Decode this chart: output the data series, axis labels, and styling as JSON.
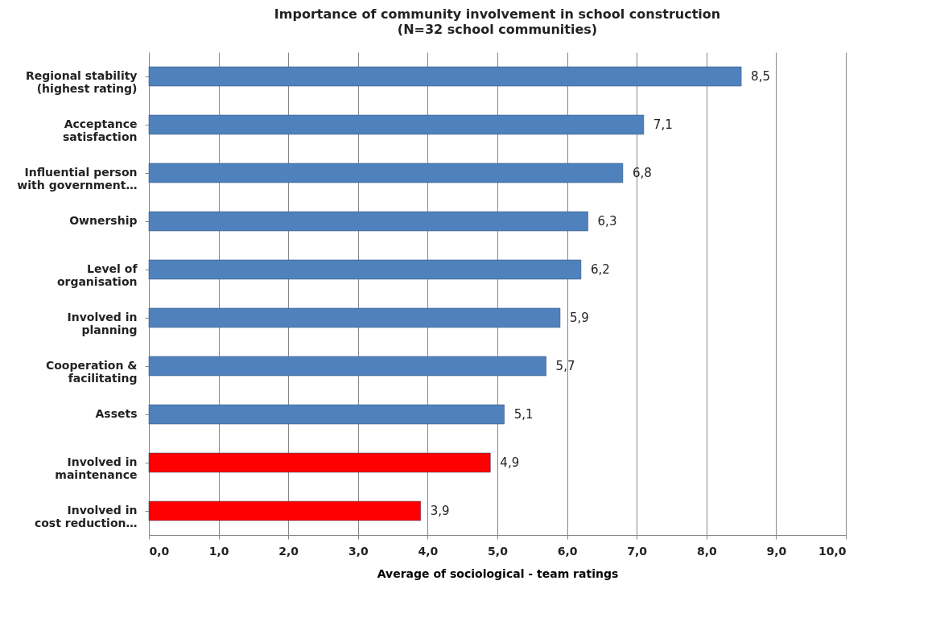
{
  "chart_data": {
    "type": "bar",
    "orientation": "horizontal",
    "title": "Importance of community involvement in school construction",
    "subtitle": "(N=32 school communities)",
    "xlabel": "Average of  sociological - team ratings",
    "categories": [
      "Regional stability\n(highest rating)",
      "Acceptance\nsatisfaction",
      "Influential person\nwith government…",
      "Ownership",
      "Level of\norganisation",
      "Involved in\nplanning",
      "Cooperation &\nfacilitating",
      "Assets",
      "Involved in\nmaintenance",
      "Involved in\ncost reduction…"
    ],
    "values": [
      8.5,
      7.1,
      6.8,
      6.3,
      6.2,
      5.9,
      5.7,
      5.1,
      4.9,
      3.9
    ],
    "value_labels": [
      "8,5",
      "7,1",
      "6,8",
      "6,3",
      "6,2",
      "5,9",
      "5,7",
      "5,1",
      "4,9",
      "3,9"
    ],
    "colors": [
      "#4f81bd",
      "#4f81bd",
      "#4f81bd",
      "#4f81bd",
      "#4f81bd",
      "#4f81bd",
      "#4f81bd",
      "#4f81bd",
      "#ff0000",
      "#ff0000"
    ],
    "xlim": [
      0,
      10
    ],
    "xticks": [
      {
        "value": 0,
        "label": "0,0"
      },
      {
        "value": 1,
        "label": "1,0"
      },
      {
        "value": 2,
        "label": "2,0"
      },
      {
        "value": 3,
        "label": "3,0"
      },
      {
        "value": 4,
        "label": "4,0"
      },
      {
        "value": 5,
        "label": "5,0"
      },
      {
        "value": 6,
        "label": "6,0"
      },
      {
        "value": 7,
        "label": "7,0"
      },
      {
        "value": 8,
        "label": "8,0"
      },
      {
        "value": 9,
        "label": "9,0"
      },
      {
        "value": 10,
        "label": "10,0"
      }
    ],
    "grid": "x",
    "legend": false
  }
}
